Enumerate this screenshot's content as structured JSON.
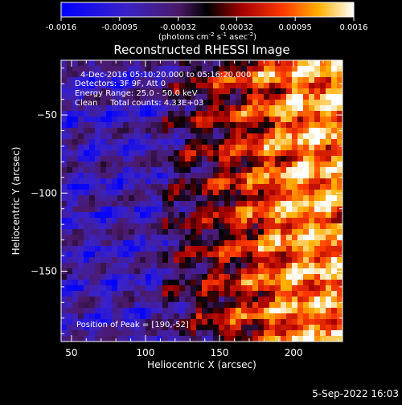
{
  "chart_data": {
    "type": "heatmap",
    "title": "Reconstructed RHESSI Image",
    "xlabel": "Heliocentric X (arcsec)",
    "ylabel": "Heliocentric Y (arcsec)",
    "xlim": [
      43,
      233
    ],
    "ylim": [
      -195,
      -15
    ],
    "xticks": [
      50,
      100,
      150,
      200
    ],
    "yticks": [
      -50,
      -100,
      -150
    ],
    "colorbar": {
      "min": -0.0016,
      "max": 0.0016,
      "ticks": [
        "-0.0016",
        "-0.00095",
        "-0.00032",
        "0.00032",
        "0.00095",
        "0.0016"
      ],
      "units_prefix": "(photons cm",
      "units_exp1": "-2",
      "units_mid1": " s",
      "units_exp2": "-1",
      "units_mid2": " asec",
      "units_exp3": "-2",
      "units_suffix": ")"
    },
    "annotations": {
      "time_range": "4-Dec-2016 05:10:20.000 to 05:16:20.000",
      "detectors": "Detectors: 3F 9F, Att 0",
      "energy": "Energy Range: 25.0 - 50.0 keV",
      "clean": "Clean     Total counts: 4.33E+03",
      "peak": "Position of Peak = [190,-52]"
    },
    "peak": [
      190,
      -52
    ]
  },
  "footer": {
    "date": "5-Sep-2022 16:03"
  }
}
